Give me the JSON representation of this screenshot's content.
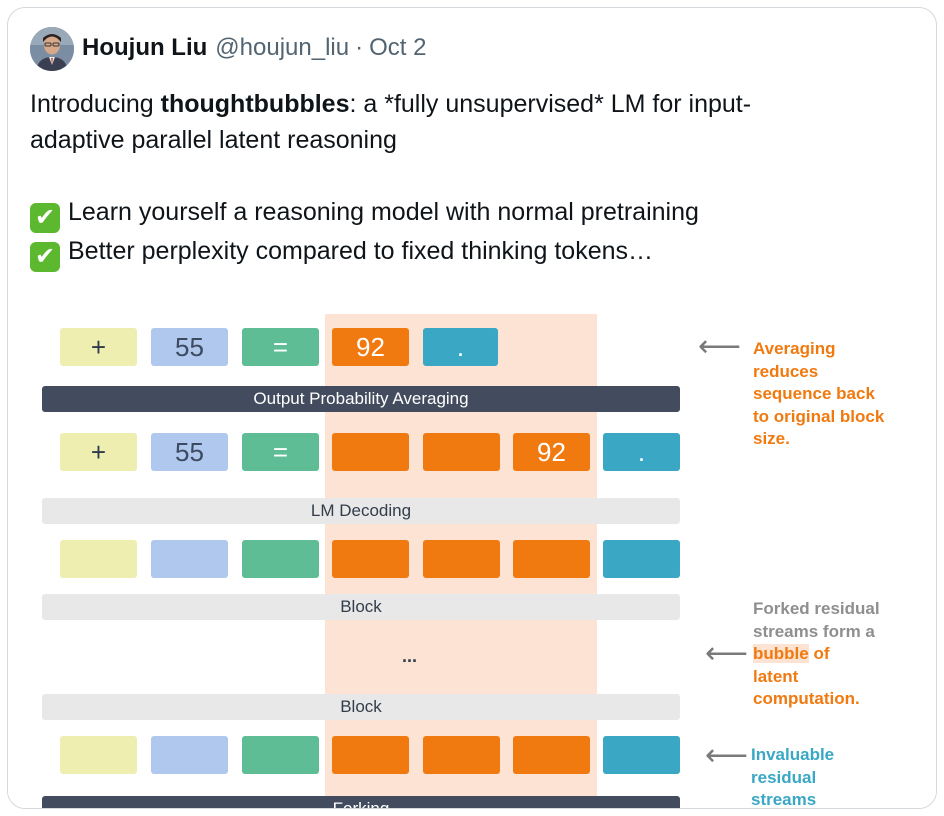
{
  "tweet": {
    "display_name": "Houjun Liu",
    "handle": "@houjun_liu",
    "separator": "·",
    "date": "Oct 2",
    "line1_prefix": "Introducing ",
    "line1_bold": "thoughtbubbles",
    "line1_suffix": ": a *fully unsupervised* LM for input-",
    "line2": "adaptive parallel latent reasoning",
    "check_icon": "✔",
    "bullet1": "Learn yourself a reasoning model with normal pretraining",
    "bullet2": "Better perplexity compared to fixed thinking tokens…"
  },
  "figure": {
    "row1_tokens": [
      "+",
      "55",
      "=",
      "92",
      "."
    ],
    "bar_output": "Output Probability Averaging",
    "row2_tokens": [
      "+",
      "55",
      "=",
      "",
      "",
      "92",
      "."
    ],
    "bar_decoding": "LM Decoding",
    "bar_block1": "Block",
    "dots": "...",
    "bar_block2": "Block",
    "bar_forking": "Forking",
    "arrow_icon": "⟵",
    "note1": [
      "Averaging",
      "reduces",
      "sequence back",
      "to original block",
      "size."
    ],
    "note2_line1": "Forked residual",
    "note2_line2": "streams form a",
    "note2_highlight": "bubble",
    "note2_line3_rest": " of",
    "note2_line4": "latent",
    "note2_line5": "computation.",
    "note3": [
      "Invaluable",
      "residual",
      "streams"
    ],
    "colors": {
      "orange": "#f07a10",
      "teal": "#3aa7c4",
      "green": "#5fbd96",
      "blue": "#b0c8ee",
      "yellow": "#eeeeb0",
      "dark_bar": "#434c5e",
      "bubble": "#fde3d3"
    }
  }
}
